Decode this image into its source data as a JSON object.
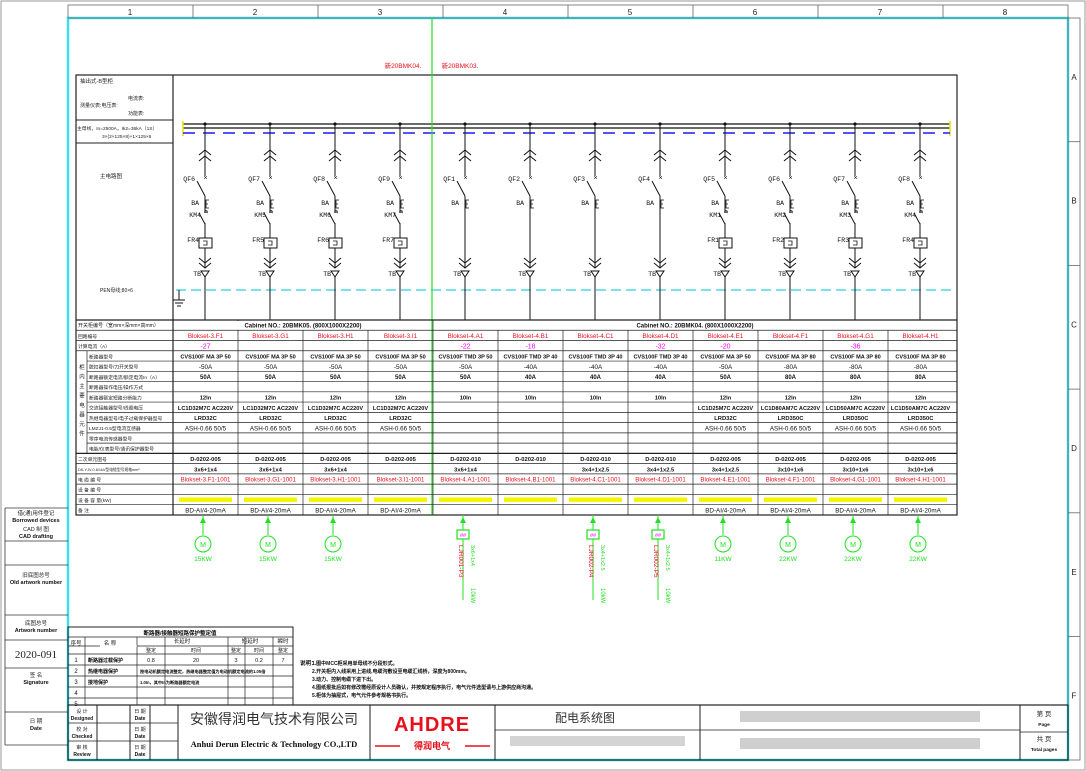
{
  "colors": {
    "frame": "#3ee0e8",
    "red": "#e8101c",
    "magenta": "#ff00ff",
    "green": "#22e022",
    "blue": "#1a1aff",
    "yellow": "#f5f500",
    "black": "#111111"
  },
  "ruler": {
    "cols": [
      "1",
      "2",
      "3",
      "4",
      "5",
      "6",
      "7",
      "8"
    ],
    "rows": [
      "A",
      "B",
      "C",
      "D",
      "E",
      "F"
    ]
  },
  "marks": {
    "left": "新20BMK04.",
    "right": "新20BMK03."
  },
  "labels": {
    "cabinet_type": "抽出式-B型柜",
    "ammeter": "电流表:",
    "meter_group": "测量仪表:电压表:",
    "power_meter": "功能表:",
    "main_bus": "主母线，In=2500A，Ik2=36kA（1S）",
    "main_bus_spec": "3×(2×125×8)+1×125×6",
    "main_circuit": "主电路图",
    "pen_bus": "PEN母线;80×6"
  },
  "cabinets": [
    "Cabinet NO.: 20BMK05. (800X1000X2200)",
    "Cabinet NO.: 20BMK04. (800X1000X2200)"
  ],
  "row_labels": [
    "开关柜编号（宽mm×深mm×高mm）",
    "回路编号",
    "计算电流（A）",
    "断路器型号",
    "脱扣器型号/刀开关型号",
    "断路器额定电流/额定电流In（A）",
    "断路器操作电压/操作方式",
    "断路器额定短路分断能力",
    "交流接触器型号/线圈电压",
    "热继电器型号/电子过载保护器型号",
    "LMZJ1-0.5型电流互感器",
    "零序电流传感器型号",
    "电能/仪表型号/通讯保护器型号",
    "二次单元图号",
    "DK-YJV-0.6/1kV型电缆型号规格mm²",
    "电  缆  编  号",
    "设  备  编  号",
    "设  备  容  量(kW)",
    "备  注"
  ],
  "group_label": "柜内主要电器元件",
  "circuits": [
    {
      "qf": "QF6",
      "km": "KM4",
      "fr": "FR4",
      "no": "Blokset-3.F1",
      "cur": "-27",
      "brk": "CVS100F MA 3P 50",
      "trip": "-50A",
      "rated": "50A",
      "sc": "12In",
      "cont": "LC1D32M7C AC220V",
      "ovl": "LRD32C",
      "ct": "ASH-0.66 50/5",
      "unit": "D-0202-005",
      "cable": "3x6+1x4",
      "cno": "Blokset-3.F1-1001",
      "rem": "BD-AI/4-20mA",
      "load": {
        "type": "motor",
        "kw": "15KW"
      }
    },
    {
      "qf": "QF7",
      "km": "KM5",
      "fr": "FR5",
      "no": "Blokset-3.G1",
      "cur": "",
      "brk": "CVS100F MA 3P 50",
      "trip": "-50A",
      "rated": "50A",
      "sc": "12In",
      "cont": "LC1D32M7C AC220V",
      "ovl": "LRD32C",
      "ct": "ASH-0.66 50/5",
      "unit": "D-0202-005",
      "cable": "3x6+1x4",
      "cno": "Blokset-3.G1-1001",
      "rem": "BD-AI/4-20mA",
      "load": {
        "type": "motor",
        "kw": "15KW"
      }
    },
    {
      "qf": "QF8",
      "km": "KM6",
      "fr": "FR6",
      "no": "Blokset-3.H1",
      "cur": "",
      "brk": "CVS100F MA 3P 50",
      "trip": "-50A",
      "rated": "50A",
      "sc": "12In",
      "cont": "LC1D32M7C AC220V",
      "ovl": "LRD32C",
      "ct": "ASH-0.66 50/5",
      "unit": "D-0202-005",
      "cable": "3x6+1x4",
      "cno": "Blokset-3.H1-1001",
      "rem": "BD-AI/4-20mA",
      "load": {
        "type": "motor",
        "kw": "15KW"
      }
    },
    {
      "qf": "QF9",
      "km": "KM7",
      "fr": "FR7",
      "no": "Blokset-3.I1",
      "cur": "",
      "brk": "CVS100F MA 3P 50",
      "trip": "-50A",
      "rated": "50A",
      "sc": "12In",
      "cont": "LC1D32M7C AC220V",
      "ovl": "LRD32C",
      "ct": "ASH-0.66 50/5",
      "unit": "D-0202-005",
      "cable": "",
      "cno": "Blokset-3.I1-1001",
      "rem": "BD-AI/4-20mA",
      "load": null
    },
    {
      "qf": "QF1",
      "km": "",
      "fr": "",
      "no": "Blokset-4.A1",
      "cur": "-22",
      "brk": "CVS100F TMD 3P 50",
      "trip": "-50A",
      "rated": "50A",
      "sc": "10In",
      "cont": "",
      "ovl": "",
      "ct": "",
      "unit": "D-0202-010",
      "cable": "3x6+1x4",
      "cno": "Blokset-4.A1-1001",
      "rem": "",
      "load": {
        "type": "box",
        "box": "##",
        "id": "LJR001-P3",
        "spec": "3x6+1x4",
        "kw": "10kW"
      }
    },
    {
      "qf": "QF2",
      "km": "",
      "fr": "",
      "no": "Blokset-4.B1",
      "cur": "-18",
      "brk": "CVS100F TMD 3P 40",
      "trip": "-40A",
      "rated": "40A",
      "sc": "10In",
      "cont": "",
      "ovl": "",
      "ct": "",
      "unit": "D-0202-010",
      "cable": "",
      "cno": "Blokset-4.B1-1001",
      "rem": "",
      "load": null
    },
    {
      "qf": "QF3",
      "km": "",
      "fr": "",
      "no": "Blokset-4.C1",
      "cur": "",
      "brk": "CVS100F TMD 3P 40",
      "trip": "-40A",
      "rated": "40A",
      "sc": "10In",
      "cont": "",
      "ovl": "",
      "ct": "",
      "unit": "D-0202-010",
      "cable": "3x4+1x2.5",
      "cno": "Blokset-4.C1-1001",
      "rem": "",
      "load": {
        "type": "box",
        "box": "##",
        "id": "LJR002-P4",
        "spec": "3x4+1x2.5",
        "kw": "10kW"
      }
    },
    {
      "qf": "QF4",
      "km": "",
      "fr": "",
      "no": "Blokset-4.D1",
      "cur": "-32",
      "brk": "CVS100F TMD 3P 40",
      "trip": "-40A",
      "rated": "40A",
      "sc": "10In",
      "cont": "",
      "ovl": "",
      "ct": "",
      "unit": "D-0202-010",
      "cable": "3x4+1x2.5",
      "cno": "Blokset-4.D1-1001",
      "rem": "",
      "load": {
        "type": "box",
        "box": "##",
        "id": "LJR002-P5",
        "spec": "3x4+1x2.5",
        "kw": "10kW"
      }
    },
    {
      "qf": "QF5",
      "km": "KM1",
      "fr": "FR1",
      "no": "Blokset-4.E1",
      "cur": "-20",
      "brk": "CVS100F MA 3P 50",
      "trip": "-50A",
      "rated": "50A",
      "sc": "12In",
      "cont": "LC1D25M7C AC220V",
      "ovl": "LRD32C",
      "ct": "ASH-0.66 50/5",
      "unit": "D-0202-005",
      "cable": "3x4+1x2.5",
      "cno": "Blokset-4.E1-1001",
      "rem": "BD-AI/4-20mA",
      "load": {
        "type": "motor",
        "kw": "11KW"
      }
    },
    {
      "qf": "QF6",
      "km": "KM2",
      "fr": "FR2",
      "no": "Blokset-4.F1",
      "cur": "",
      "brk": "CVS100F MA 3P 80",
      "trip": "-80A",
      "rated": "80A",
      "sc": "12In",
      "cont": "LC1D80AM7C AC220V",
      "ovl": "LRD350C",
      "ct": "ASH-0.66 50/5",
      "unit": "D-0202-005",
      "cable": "3x10+1x6",
      "cno": "Blokset-4.F1-1001",
      "rem": "BD-AI/4-20mA",
      "load": {
        "type": "motor",
        "kw": "22KW"
      }
    },
    {
      "qf": "QF7",
      "km": "KM3",
      "fr": "FR3",
      "no": "Blokset-4.G1",
      "cur": "-36",
      "brk": "CVS100F MA 3P 80",
      "trip": "-80A",
      "rated": "80A",
      "sc": "12In",
      "cont": "LC1D50AM7C AC220V",
      "ovl": "LRD350C",
      "ct": "ASH-0.66 50/5",
      "unit": "D-0202-005",
      "cable": "3x10+1x6",
      "cno": "Blokset-4.G1-1001",
      "rem": "BD-AI/4-20mA",
      "load": {
        "type": "motor",
        "kw": "22KW"
      }
    },
    {
      "qf": "QF8",
      "km": "KM4",
      "fr": "FR4",
      "no": "Blokset-4.H1",
      "cur": "",
      "brk": "CVS100F MA 3P 80",
      "trip": "-80A",
      "rated": "80A",
      "sc": "12In",
      "cont": "LC1D50AM7C AC220V",
      "ovl": "LRD350C",
      "ct": "ASH-0.66 50/5",
      "unit": "D-0202-005",
      "cable": "3x10+1x6",
      "cno": "Blokset-4.H1-1001",
      "rem": "BD-AI/4-20mA",
      "load": {
        "type": "motor",
        "kw": "22KW"
      }
    }
  ],
  "symbols": {
    "ba": "BA",
    "tb": "TB",
    "motor": "M"
  },
  "side_boxes": [
    {
      "cn": "借(通)用件登记",
      "en": "Borrowed devices"
    },
    {
      "cn": "CAD 制 图",
      "en": "CAD drafting"
    },
    {
      "cn": "旧底图总号",
      "en": "Old artwork number"
    },
    {
      "cn": "底图总号",
      "en": "Artwork number"
    },
    {
      "cn": "签 名",
      "en": "Signature"
    },
    {
      "cn": "日 期",
      "en": "Date"
    }
  ],
  "artwork_number": "2020-091",
  "setting_table": {
    "title": "断路器/接触器短路保护整定值",
    "headers": [
      "序号",
      "名 称",
      "长延时",
      "短延时",
      "瞬时",
      "整定",
      "时间",
      "整定",
      "时间",
      "整定"
    ],
    "rows": [
      [
        "1",
        "断路器过载保护",
        "0.8",
        "20",
        "3",
        "0.2",
        "7"
      ],
      [
        "2",
        "热继电器保护",
        "按电动机额定电流整定，热继电器整定值为电动机额定电流的1.05倍"
      ],
      [
        "3",
        "接地保护",
        "1.0In，其中In为断路器额定电流"
      ],
      [
        "4",
        ""
      ],
      [
        "5",
        ""
      ]
    ]
  },
  "notes": {
    "title": "说明：",
    "items": [
      "1.图中MCC柜采用单母线不分段形式。",
      "2.开关柜内入线采用上进线,电缆沟敷设至电缆汇线桥，深度为800mm。",
      "3.动力、控制电缆下进下出。",
      "4.图纸报批后如有修改需经原设计人员确认，并按规定程序执行，电气元件选型请与上游供应商沟通。",
      "5.柜体为抽屉式，电气元件参考规格书执行。"
    ]
  },
  "title_block": {
    "roles": [
      {
        "cn": "设 计",
        "en": "Designed"
      },
      {
        "cn": "校 对",
        "en": "Checked"
      },
      {
        "cn": "审 核",
        "en": "Review"
      }
    ],
    "date": {
      "cn": "日 期",
      "en": "Date"
    },
    "company_cn": "安徽得润电气技术有限公司",
    "company_en": "Anhui Derun Electric & Technology CO.,LTD",
    "logo_text": "AHDRE",
    "logo_sub": "得润电气",
    "drawing_title": "配电系统图",
    "page": {
      "cn": "第    页",
      "en": "Page"
    },
    "total": {
      "cn": "共    页",
      "en": "Total pages"
    }
  }
}
